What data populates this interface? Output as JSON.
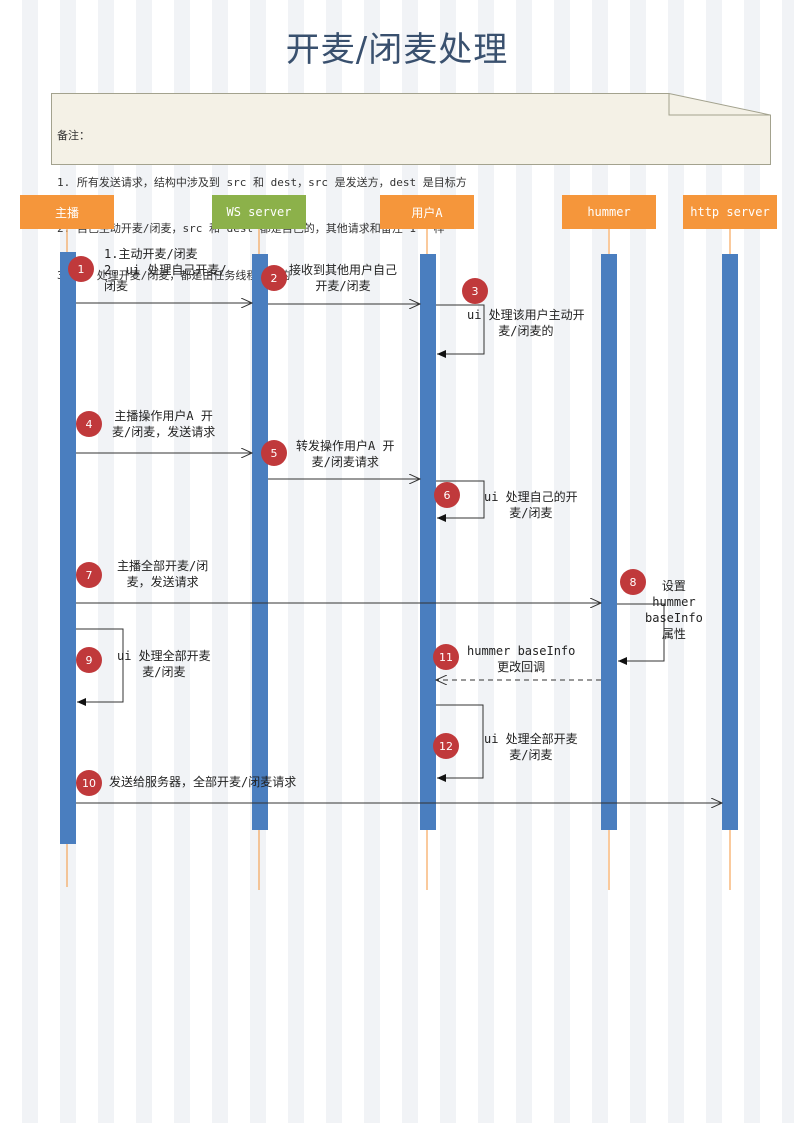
{
  "title": "开麦/闭麦处理",
  "note": {
    "lines": [
      "备注：",
      "1. 所有发送请求，结构中涉及到 src 和 dest，src 是发送方，dest 是目标方",
      "2. 自己主动开麦/闭麦，src 和 dest 都是自己的，其他请求和备注 1 一样",
      "3. ui 处理开麦/闭麦，都是由任务线程分发的"
    ]
  },
  "actors": [
    {
      "label": "主播",
      "color": "#f5963b"
    },
    {
      "label": "WS server",
      "color": "#8cb14a"
    },
    {
      "label": "用户A",
      "color": "#f5963b"
    },
    {
      "label": "hummer",
      "color": "#f5963b"
    },
    {
      "label": "http server",
      "color": "#f5963b"
    }
  ],
  "colors": {
    "bar": "#4a7ebf",
    "lifeline": "#f5963b",
    "step": "#c0393b",
    "arrow": "#333333"
  },
  "steps": [
    {
      "num": "1",
      "text": "1.主动开麦/闭麦\n2. ui 处理自己开麦/\n闭麦"
    },
    {
      "num": "2",
      "text": "接收到其他用户自己\n开麦/闭麦"
    },
    {
      "num": "3",
      "text": "ui 处理该用户主动开\n麦/闭麦的"
    },
    {
      "num": "4",
      "text": "主播操作用户A 开\n麦/闭麦，发送请求"
    },
    {
      "num": "5",
      "text": "转发操作用户A 开\n麦/闭麦请求"
    },
    {
      "num": "6",
      "text": "ui 处理自己的开\n麦/闭麦"
    },
    {
      "num": "7",
      "text": "主播全部开麦/闭\n麦，发送请求"
    },
    {
      "num": "8",
      "text": "设置\nhummer\nbaseInfo\n属性"
    },
    {
      "num": "9",
      "text": "ui 处理全部开麦\n麦/闭麦"
    },
    {
      "num": "11",
      "text": "hummer baseInfo\n更改回调"
    },
    {
      "num": "12",
      "text": "ui 处理全部开麦\n麦/闭麦"
    },
    {
      "num": "10",
      "text": "发送给服务器，全部开麦/闭麦请求"
    }
  ]
}
